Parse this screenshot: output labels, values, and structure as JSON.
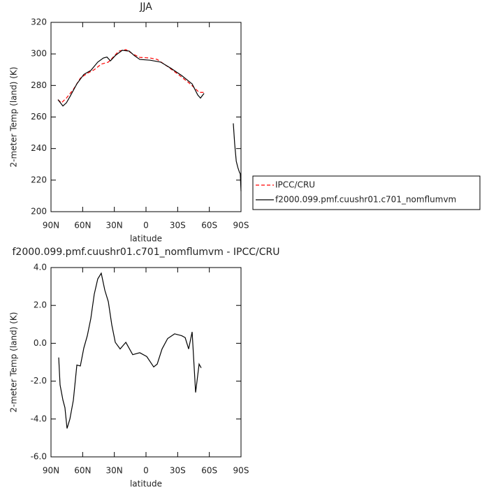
{
  "chart_data": [
    {
      "type": "line",
      "title": "JJA",
      "xlabel": "latitude",
      "ylabel": "2-meter Temp (land) (K)",
      "xlim": [
        90,
        -90
      ],
      "xticks": [
        {
          "value": 90,
          "label": "90N"
        },
        {
          "value": 60,
          "label": "60N"
        },
        {
          "value": 30,
          "label": "30N"
        },
        0,
        {
          "value": -30,
          "label": "30S"
        },
        {
          "value": -60,
          "label": "60S"
        },
        {
          "value": -90,
          "label": "90S"
        }
      ],
      "ylim": [
        200,
        320
      ],
      "yticks": [
        200,
        220,
        240,
        260,
        280,
        300,
        320
      ],
      "legend": "right",
      "series": [
        {
          "name": "IPCC/CRU",
          "color": "#ff0000",
          "style": "dashed",
          "x": [
            83.4,
            80.1,
            75.4,
            68.8,
            62.2,
            55.6,
            49,
            42.4,
            35.7,
            32.4,
            25.8,
            19.1,
            12.5,
            5.9,
            -4,
            -10.6,
            -20.5,
            -30.5,
            -40.4,
            -47,
            -50.3,
            -55
          ],
          "values": [
            271,
            269,
            272,
            277.5,
            284.6,
            287.7,
            290,
            293.5,
            294.8,
            297,
            301.8,
            302.7,
            300,
            297.8,
            297.4,
            296.5,
            292,
            287,
            281.8,
            277.8,
            275.6,
            275.6
          ]
        },
        {
          "name": "f2000.099.pmf.cuushr01.c701_nomflumvm",
          "color": "#000000",
          "style": "solid",
          "x": [
            83.4,
            78.7,
            75.4,
            72,
            65.5,
            58.9,
            52.3,
            45.7,
            40.4,
            37,
            33.7,
            29,
            22.5,
            15.9,
            11.2,
            5.9,
            -4,
            -13.9,
            -23.8,
            -33.8,
            -43.7,
            -49,
            -51.6,
            -55,
            -70,
            -82.7,
            -84,
            -85.5,
            -87,
            -88.5,
            -89.3,
            -90
          ],
          "values": [
            271,
            267,
            269,
            273,
            281,
            287,
            289.5,
            294.8,
            297.4,
            298,
            295.6,
            299,
            302.3,
            301.8,
            299,
            296.5,
            296,
            294.8,
            290.8,
            286.3,
            281,
            274,
            272,
            275,
            null,
            256,
            243,
            232,
            228,
            225,
            224,
            213
          ]
        }
      ]
    },
    {
      "type": "line",
      "title": "f2000.099.pmf.cuushr01.c701_nomflumvm - IPCC/CRU",
      "xlabel": "latitude",
      "ylabel": "2-meter Temp (land) (K)",
      "xlim": [
        90,
        -90
      ],
      "xticks": [
        {
          "value": 90,
          "label": "90N"
        },
        {
          "value": 60,
          "label": "60N"
        },
        {
          "value": 30,
          "label": "30N"
        },
        0,
        {
          "value": -30,
          "label": "30S"
        },
        {
          "value": -60,
          "label": "60S"
        },
        {
          "value": -90,
          "label": "90S"
        }
      ],
      "ylim": [
        -6,
        4
      ],
      "yticks": [
        {
          "value": -6,
          "label": "-6.0"
        },
        {
          "value": -4,
          "label": "-4.0"
        },
        {
          "value": -2,
          "label": "-2.0"
        },
        {
          "value": 0,
          "label": "0.0"
        },
        {
          "value": 2,
          "label": "2.0"
        },
        {
          "value": 4,
          "label": "4.0"
        }
      ],
      "color": "#000000",
      "x": [
        82.7,
        81.4,
        78.7,
        76.8,
        74.8,
        72.1,
        68.8,
        65.5,
        62.2,
        58.9,
        55.6,
        52.3,
        49,
        45.7,
        42.4,
        39,
        35.7,
        32.4,
        29.1,
        24.5,
        19.1,
        12.6,
        5.9,
        -0.7,
        -7.3,
        -10.6,
        -15.2,
        -20.5,
        -27.1,
        -33.8,
        -37.1,
        -40.4,
        -43.7,
        -47,
        -50.3,
        -52.3
      ],
      "values": [
        -0.75,
        -2.2,
        -3,
        -3.4,
        -4.5,
        -4,
        -3,
        -1.15,
        -1.2,
        -0.25,
        0.4,
        1.3,
        2.6,
        3.4,
        3.7,
        2.8,
        2.2,
        0.97,
        0.05,
        -0.3,
        0.05,
        -0.6,
        -0.5,
        -0.7,
        -1.25,
        -1.1,
        -0.3,
        0.25,
        0.5,
        0.4,
        0.3,
        -0.3,
        0.6,
        -2.6,
        -1.1,
        -1.3
      ]
    }
  ]
}
